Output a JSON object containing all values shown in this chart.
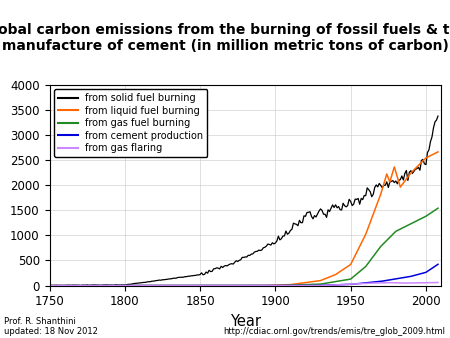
{
  "title": "Global carbon emissions from the burning of fossil fuels & the\nmanufacture of cement (in million metric tons of carbon)",
  "xlabel": "Year",
  "title_bg": "#ffff00",
  "title_fontsize": 10,
  "xlim": [
    1750,
    2010
  ],
  "ylim": [
    0,
    4000
  ],
  "yticks": [
    0,
    500,
    1000,
    1500,
    2000,
    2500,
    3000,
    3500,
    4000
  ],
  "xticks": [
    1750,
    1800,
    1850,
    1900,
    1950,
    2000
  ],
  "legend_labels": [
    "from solid fuel burning",
    "from liquid fuel burning",
    "from gas fuel burning",
    "from cement production",
    "from gas flaring"
  ],
  "legend_colors": [
    "#000000",
    "#ff6600",
    "#228b22",
    "#0000dd",
    "#cc88ff"
  ],
  "footer_left": "Prof. R. Shanthini\nupdated: 18 Nov 2012",
  "footer_right": "http://cdiac.ornl.gov/trends/emis/tre_glob_2009.html"
}
